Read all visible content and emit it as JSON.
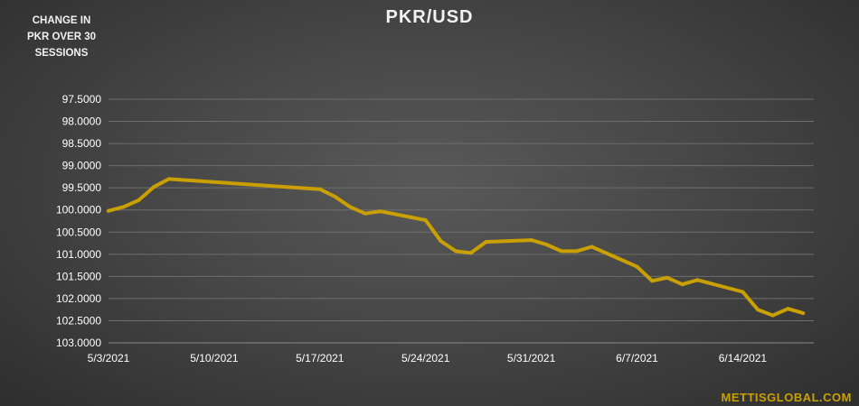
{
  "chart_data": {
    "type": "line",
    "title": "PKR/USD",
    "side_caption": [
      "CHANGE IN",
      "PKR OVER 30",
      "SESSIONS"
    ],
    "watermark": "METTISGLOBAL.COM",
    "y_reversed": true,
    "ylim": [
      97.5,
      103.0
    ],
    "yticks": [
      "97.5000",
      "98.0000",
      "98.5000",
      "99.0000",
      "99.5000",
      "100.0000",
      "100.5000",
      "101.0000",
      "101.5000",
      "102.0000",
      "102.5000",
      "103.0000"
    ],
    "xlim": [
      "2021-05-03",
      "2021-06-19"
    ],
    "xticks": [
      {
        "date": "2021-05-03",
        "label": "5/3/2021"
      },
      {
        "date": "2021-05-10",
        "label": "5/10/2021"
      },
      {
        "date": "2021-05-17",
        "label": "5/17/2021"
      },
      {
        "date": "2021-05-24",
        "label": "5/24/2021"
      },
      {
        "date": "2021-05-31",
        "label": "5/31/2021"
      },
      {
        "date": "2021-06-07",
        "label": "6/7/2021"
      },
      {
        "date": "2021-06-14",
        "label": "6/14/2021"
      }
    ],
    "grid": true,
    "line_color": "#c9a000",
    "series": [
      {
        "values": [
          {
            "x": "2021-05-03",
            "y": 100.02
          },
          {
            "x": "2021-05-04",
            "y": 99.93
          },
          {
            "x": "2021-05-05",
            "y": 99.78
          },
          {
            "x": "2021-05-06",
            "y": 99.48
          },
          {
            "x": "2021-05-07",
            "y": 99.3
          },
          {
            "x": "2021-05-17",
            "y": 99.53
          },
          {
            "x": "2021-05-18",
            "y": 99.7
          },
          {
            "x": "2021-05-19",
            "y": 99.93
          },
          {
            "x": "2021-05-20",
            "y": 100.08
          },
          {
            "x": "2021-05-21",
            "y": 100.03
          },
          {
            "x": "2021-05-24",
            "y": 100.23
          },
          {
            "x": "2021-05-25",
            "y": 100.7
          },
          {
            "x": "2021-05-26",
            "y": 100.93
          },
          {
            "x": "2021-05-27",
            "y": 100.97
          },
          {
            "x": "2021-05-28",
            "y": 100.72
          },
          {
            "x": "2021-05-31",
            "y": 100.68
          },
          {
            "x": "2021-06-01",
            "y": 100.78
          },
          {
            "x": "2021-06-02",
            "y": 100.93
          },
          {
            "x": "2021-06-03",
            "y": 100.93
          },
          {
            "x": "2021-06-04",
            "y": 100.83
          },
          {
            "x": "2021-06-07",
            "y": 101.28
          },
          {
            "x": "2021-06-08",
            "y": 101.6
          },
          {
            "x": "2021-06-09",
            "y": 101.53
          },
          {
            "x": "2021-06-10",
            "y": 101.68
          },
          {
            "x": "2021-06-11",
            "y": 101.58
          },
          {
            "x": "2021-06-14",
            "y": 101.85
          },
          {
            "x": "2021-06-15",
            "y": 102.25
          },
          {
            "x": "2021-06-16",
            "y": 102.38
          },
          {
            "x": "2021-06-17",
            "y": 102.23
          },
          {
            "x": "2021-06-18",
            "y": 102.33
          }
        ]
      }
    ]
  }
}
